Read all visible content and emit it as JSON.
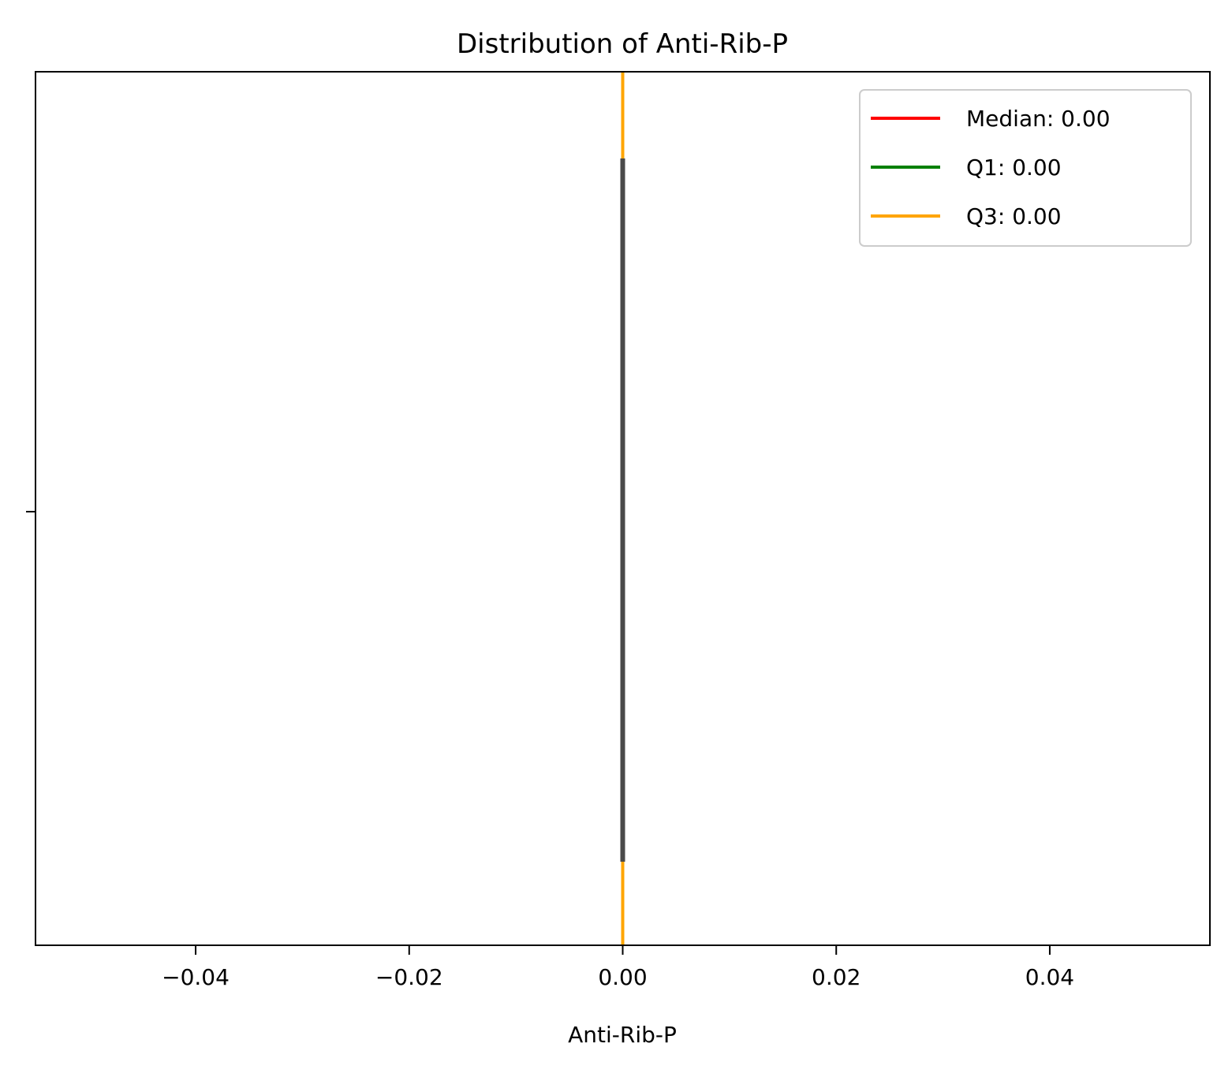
{
  "chart_data": {
    "type": "box",
    "title": "Distribution of Anti-Rib-P",
    "xlabel": "Anti-Rib-P",
    "ylabel": "",
    "xlim": [
      -0.055,
      0.055
    ],
    "x_ticks": [
      -0.04,
      -0.02,
      0.0,
      0.02,
      0.04
    ],
    "x_tick_labels": [
      "−0.04",
      "−0.02",
      "0.00",
      "0.02",
      "0.04"
    ],
    "grid": false,
    "box": {
      "min": 0.0,
      "q1": 0.0,
      "median": 0.0,
      "q3": 0.0,
      "max": 0.0,
      "color": "#4a4a4a"
    },
    "reference_lines": [
      {
        "name": "Median: 0.00",
        "value": 0.0,
        "color": "#ff0000"
      },
      {
        "name": "Q1: 0.00",
        "value": 0.0,
        "color": "#008000"
      },
      {
        "name": "Q3: 0.00",
        "value": 0.0,
        "color": "#ffa500"
      }
    ],
    "legend_position": "top-right"
  }
}
